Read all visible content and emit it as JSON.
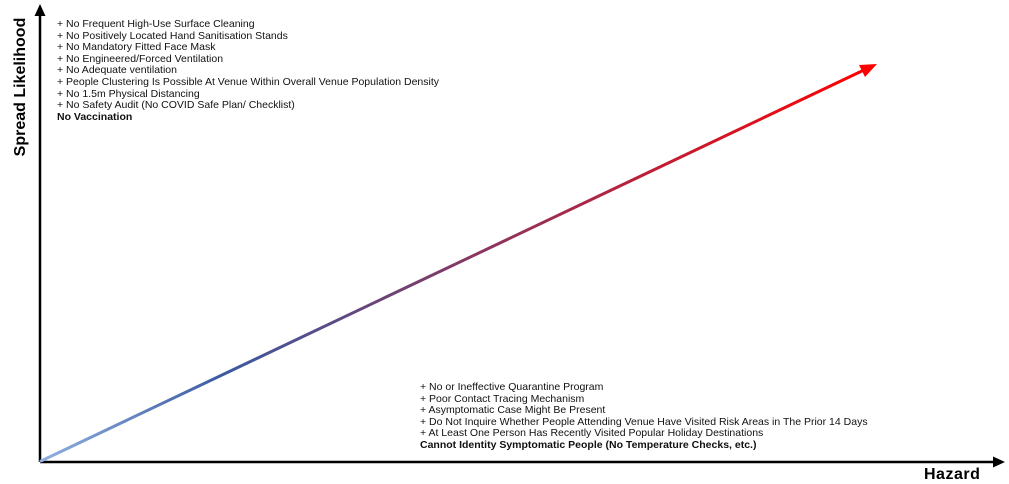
{
  "axes": {
    "y_label": "Spread Likelihood",
    "x_label": "Hazard"
  },
  "top_factors": {
    "items": [
      "+ No Frequent High-Use Surface Cleaning",
      "+ No Positively Located Hand Sanitisation Stands",
      "+ No Mandatory Fitted Face Mask",
      "+ No Engineered/Forced Ventilation",
      "+ No Adequate ventilation",
      "+ People Clustering Is Possible At Venue Within Overall Venue Population Density",
      "+ No 1.5m Physical Distancing",
      "+ No Safety Audit (No COVID Safe Plan/ Checklist)"
    ],
    "summary": "No Vaccination"
  },
  "bottom_factors": {
    "items": [
      "+ No or Ineffective Quarantine Program",
      "+ Poor Contact Tracing Mechanism",
      "+ Asymptomatic Case Might Be Present",
      "+ Do Not Inquire Whether People Attending Venue Have Visited Risk Areas in The  Prior 14 Days",
      "+ At Least One Person Has Recently Visited Popular Holiday Destinations"
    ],
    "summary": "Cannot Identity Symptomatic People (No Temperature Checks, etc.)"
  },
  "colors": {
    "axis": "#000000",
    "trend_start": "#8fb0e0",
    "trend_mid": "#3b5aa0",
    "trend_end": "#ff0000"
  }
}
